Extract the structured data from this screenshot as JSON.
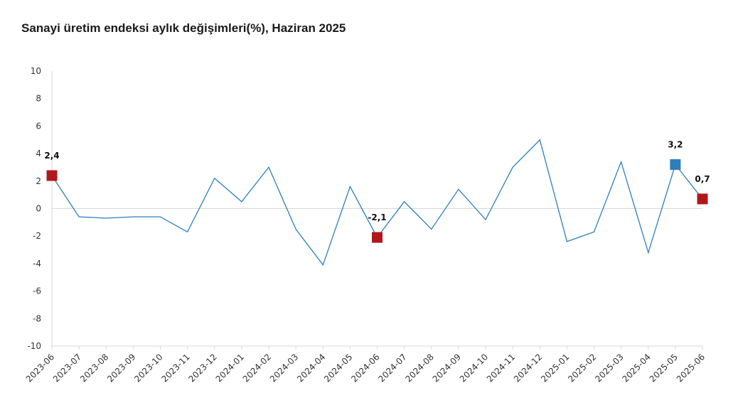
{
  "chart_data": {
    "type": "line",
    "title": "Sanayi üretim endeksi aylık değişimleri(%), Haziran 2025",
    "xlabel": "",
    "ylabel": "",
    "ylim": [
      -10,
      10
    ],
    "yticks": [
      10,
      8,
      6,
      4,
      2,
      0,
      -2,
      -4,
      -6,
      -8,
      -10
    ],
    "grid": false,
    "x": [
      "2023-06",
      "2023-07",
      "2023-08",
      "2023-09",
      "2023-10",
      "2023-11",
      "2023-12",
      "2024-01",
      "2024-02",
      "2024-03",
      "2024-04",
      "2024-05",
      "2024-06",
      "2024-07",
      "2024-08",
      "2024-09",
      "2024-10",
      "2024-11",
      "2024-12",
      "2025-01",
      "2025-02",
      "2025-03",
      "2025-04",
      "2025-05",
      "2025-06"
    ],
    "series": [
      {
        "values": [
          2.4,
          -0.6,
          -0.7,
          -0.6,
          -0.6,
          -1.7,
          2.2,
          0.5,
          3.0,
          -1.5,
          -4.1,
          1.6,
          -2.1,
          0.5,
          -1.5,
          1.4,
          -0.8,
          3.0,
          5.0,
          -2.4,
          -1.7,
          3.4,
          -3.2,
          3.2,
          0.7
        ],
        "color": "#2e7ebc"
      }
    ],
    "highlights": [
      {
        "index": 0,
        "label": "2,4",
        "color": "#b0171c"
      },
      {
        "index": 12,
        "label": "-2,1",
        "color": "#b0171c"
      },
      {
        "index": 23,
        "label": "3,2",
        "color": "#2e7ebc"
      },
      {
        "index": 24,
        "label": "0,7",
        "color": "#b0171c"
      }
    ]
  }
}
